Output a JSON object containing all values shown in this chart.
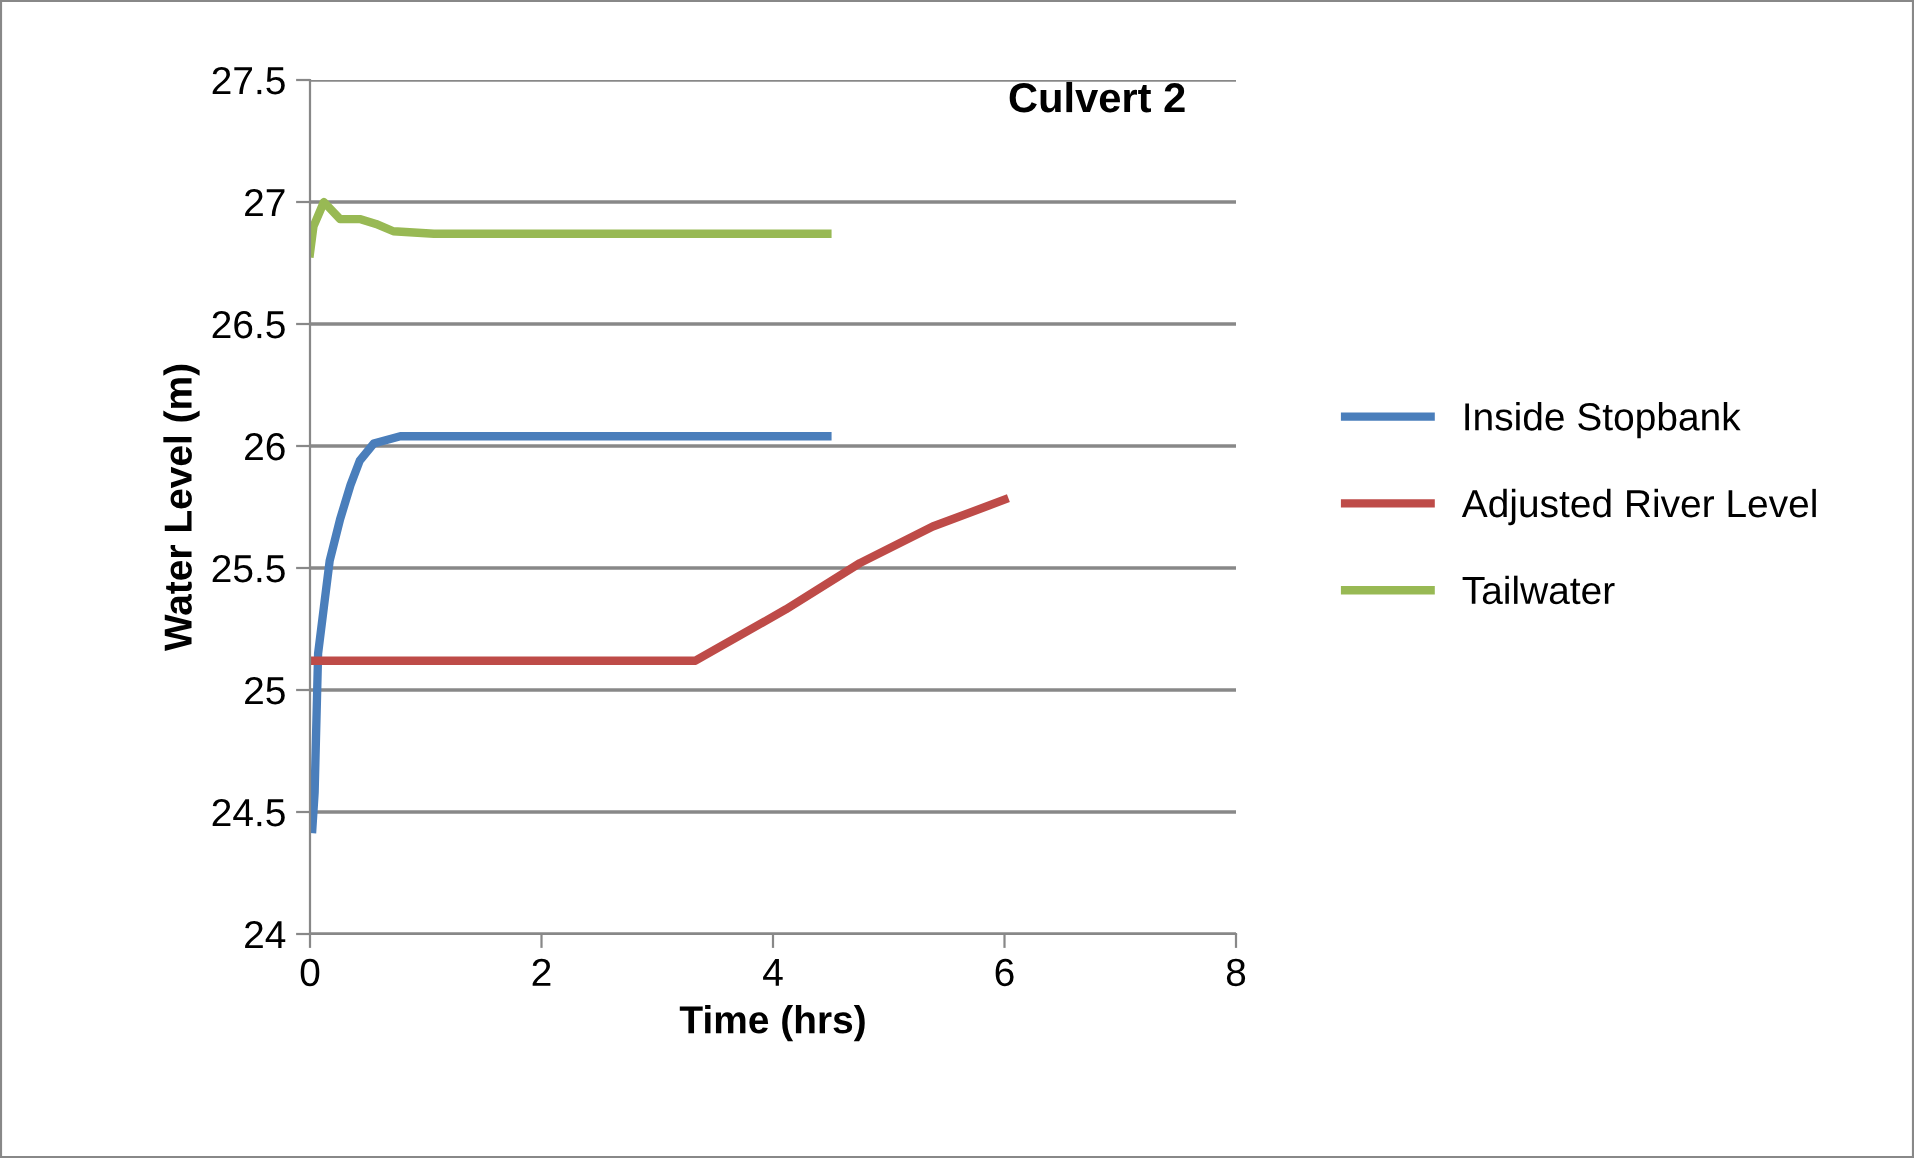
{
  "chart_data": {
    "type": "line",
    "title": "Culvert 2",
    "xlabel": "Time (hrs)",
    "ylabel": "Water Level (m)",
    "xlim": [
      0,
      8
    ],
    "xticks": [
      0,
      2,
      4,
      6,
      8
    ],
    "ylim": [
      24,
      27.5
    ],
    "yticks": [
      24,
      24.5,
      25,
      25.5,
      26,
      26.5,
      27,
      27.5
    ],
    "grid": "y",
    "legend": "right",
    "line_style": "solid",
    "series": [
      {
        "name": "Inside Stopbank",
        "color": "#4a7ebb",
        "x": [
          0.02,
          0.04,
          0.07,
          0.12,
          0.17,
          0.26,
          0.35,
          0.43,
          0.55,
          0.78,
          4.47
        ],
        "values": [
          24.43,
          24.58,
          25.15,
          25.34,
          25.53,
          25.7,
          25.84,
          25.94,
          26.01,
          26.04,
          26.04
        ]
      },
      {
        "name": "Adjusted River Level",
        "color": "#be4b48",
        "x": [
          0,
          3.33,
          4.11,
          4.75,
          5.38,
          6.0
        ],
        "values": [
          25.12,
          25.12,
          25.33,
          25.52,
          25.67,
          25.78
        ]
      },
      {
        "name": "Tailwater",
        "color": "#98b954",
        "x": [
          0,
          0.03,
          0.12,
          0.26,
          0.43,
          0.57,
          0.72,
          1.07,
          4.47
        ],
        "values": [
          26.79,
          26.9,
          27.0,
          26.93,
          26.93,
          26.91,
          26.88,
          26.87,
          26.87
        ]
      }
    ]
  }
}
